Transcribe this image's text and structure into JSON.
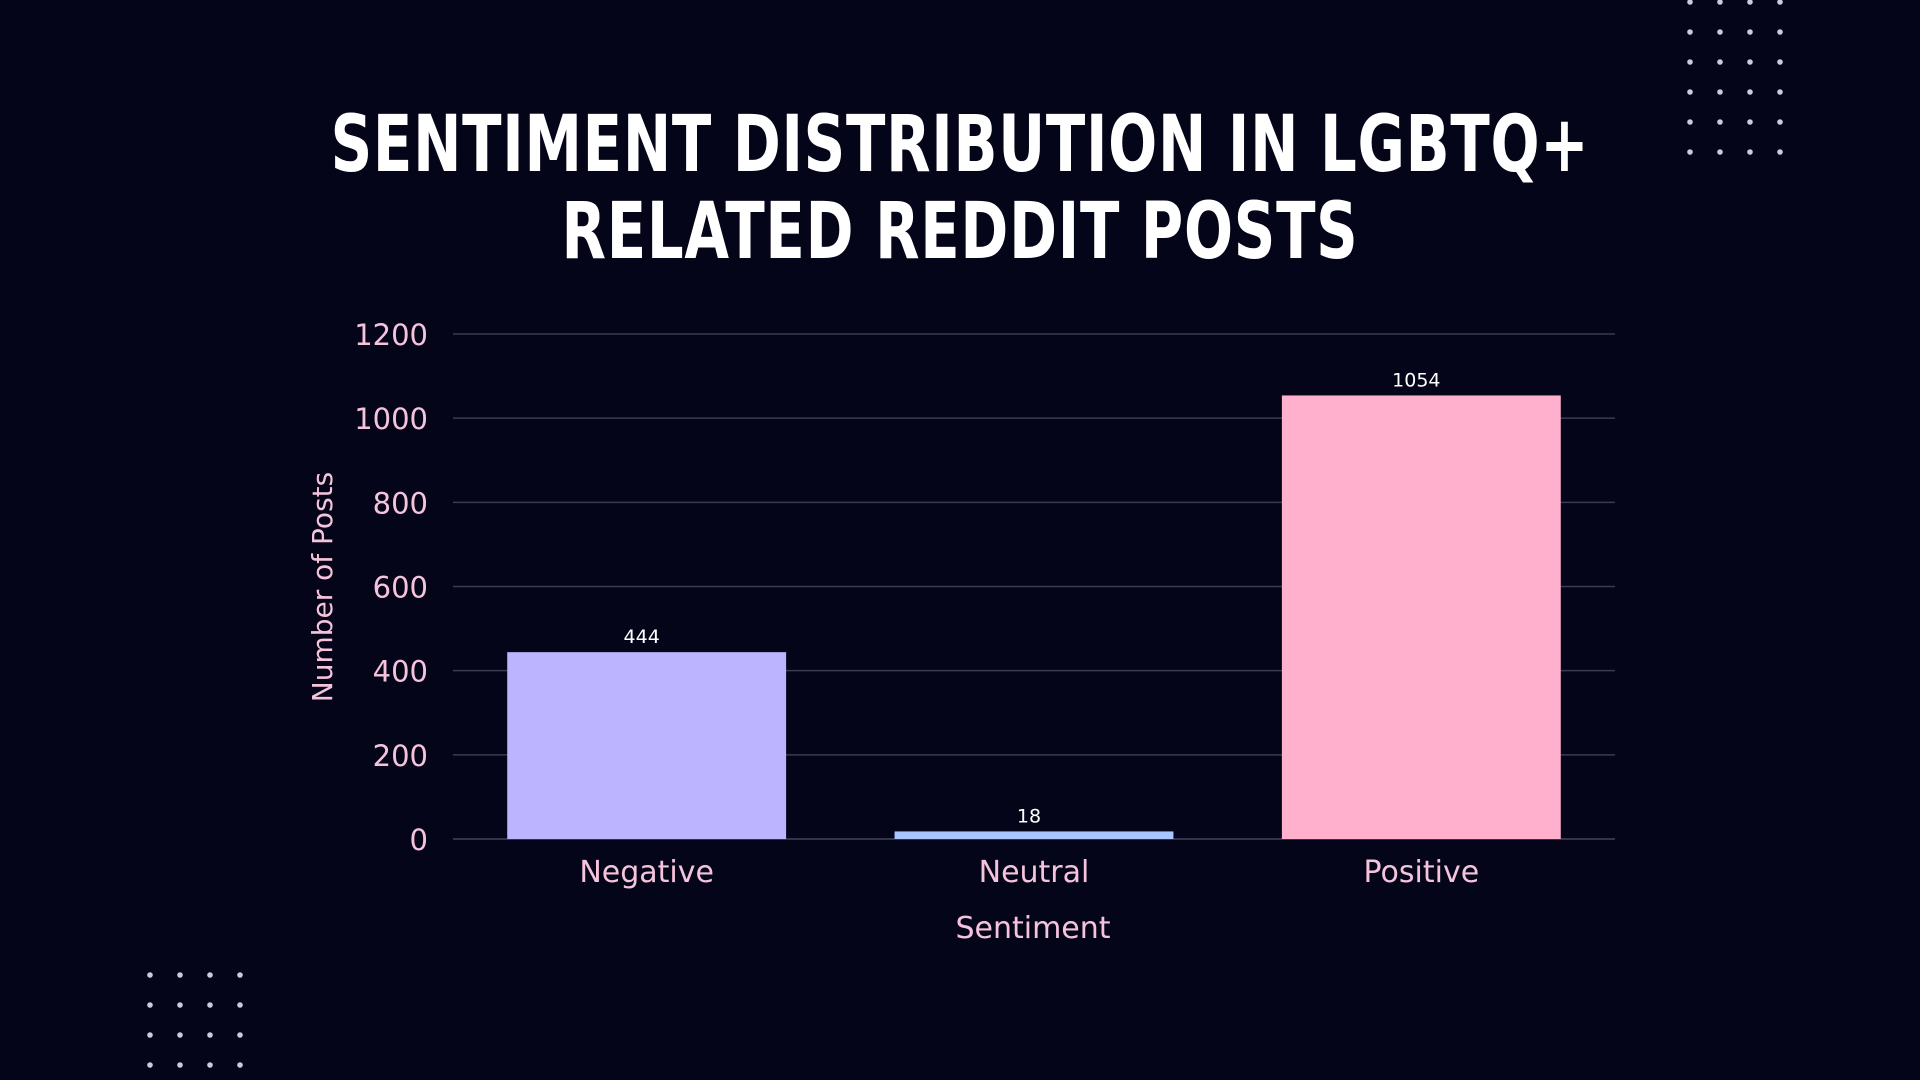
{
  "chart_data": {
    "type": "bar",
    "title": "Sentiment Distribution in LGBTQ+ Related Reddit Posts",
    "xlabel": "Sentiment",
    "ylabel": "Number of Posts",
    "categories": [
      "Negative",
      "Neutral",
      "Positive"
    ],
    "values": [
      444,
      18,
      1054
    ],
    "bar_colors": [
      "#bdb4ff",
      "#a9c6ff",
      "#ffb0cc"
    ],
    "ylim": [
      0,
      1200
    ],
    "yticks": [
      0,
      200,
      400,
      600,
      800,
      1000,
      1200
    ],
    "grid": true,
    "legend": "none"
  },
  "colors": {
    "background": "#05051a",
    "title": "#ffffff",
    "axis_text": "#f5c4dc",
    "value_label": "#ffffff",
    "gridline": "#3a3a55",
    "decor_dots": "#c9cbe6"
  }
}
